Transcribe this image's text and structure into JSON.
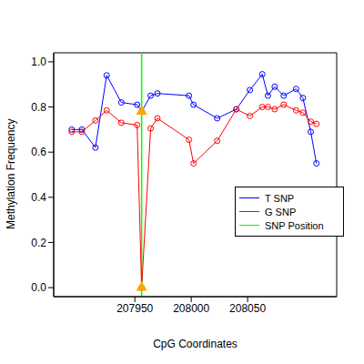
{
  "chart_data": {
    "type": "line",
    "x_label": "CpG Coordinates",
    "y_label": "Methylation Frequency",
    "x": [
      207894,
      207903,
      207915,
      207925,
      207938,
      207952,
      207956,
      207964,
      207970,
      207998,
      208002,
      208023,
      208040,
      208052,
      208063,
      208068,
      208074,
      208082,
      208093,
      208099,
      208106,
      208111
    ],
    "series": [
      {
        "name": "T SNP",
        "color": "#0000ff",
        "marker": "open_circle",
        "values": [
          0.7,
          0.7,
          0.62,
          0.94,
          0.82,
          0.81,
          0.78,
          0.85,
          0.86,
          0.85,
          0.81,
          0.75,
          0.79,
          0.875,
          0.945,
          0.85,
          0.89,
          0.85,
          0.88,
          0.84,
          0.69,
          0.55
        ]
      },
      {
        "name": "G SNP",
        "color": "#ff0000",
        "marker": "open_circle",
        "values": [
          0.69,
          0.69,
          0.74,
          0.785,
          0.73,
          0.72,
          0.0,
          0.705,
          0.75,
          0.655,
          0.55,
          0.65,
          0.79,
          0.76,
          0.8,
          0.8,
          0.79,
          0.81,
          0.785,
          0.775,
          0.735,
          0.725
        ]
      }
    ],
    "snp": {
      "name": "SNP Position",
      "color": "#00ff00",
      "x": 207956,
      "marker_color": "#ffa500",
      "marker": "triangle",
      "marker_values": [
        0.0,
        0.78
      ]
    },
    "xlim": [
      207878,
      208129
    ],
    "xticks": [
      207950,
      208000,
      208050
    ],
    "ylim": [
      -0.04,
      1.04
    ],
    "yticks": [
      {
        "value": 0,
        "label": "0.0"
      },
      0.2,
      0.4,
      0.6,
      0.8,
      {
        "value": 1,
        "label": "1.0"
      }
    ],
    "legend": "right",
    "grid": false
  }
}
